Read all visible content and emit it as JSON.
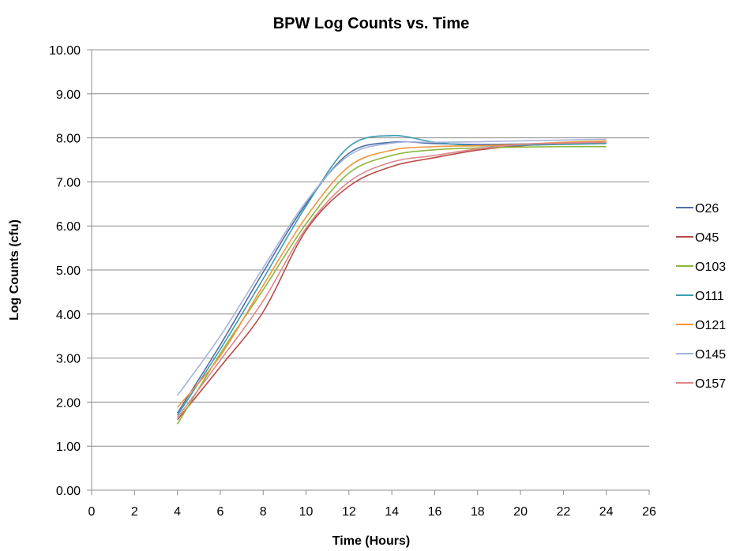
{
  "chart_data": {
    "type": "line",
    "title": "BPW Log Counts vs. Time",
    "xlabel": "Time (Hours)",
    "ylabel": "Log Counts  (cfu)",
    "xlim": [
      0,
      26
    ],
    "ylim": [
      0,
      10
    ],
    "xticks": [
      0,
      2,
      4,
      6,
      8,
      10,
      12,
      14,
      16,
      18,
      20,
      22,
      24,
      26
    ],
    "yticks": [
      0,
      1,
      2,
      3,
      4,
      5,
      6,
      7,
      8,
      9,
      10
    ],
    "xtick_labels": [
      "0",
      "2",
      "4",
      "6",
      "8",
      "10",
      "12",
      "14",
      "16",
      "18",
      "20",
      "22",
      "24",
      "26"
    ],
    "ytick_labels": [
      "0.00",
      "1.00",
      "2.00",
      "3.00",
      "4.00",
      "5.00",
      "6.00",
      "7.00",
      "8.00",
      "9.00",
      "10.00"
    ],
    "grid": "horizontal",
    "legend": "right",
    "x": [
      4,
      6,
      8,
      10,
      12,
      14,
      16,
      18,
      20,
      22,
      24
    ],
    "series": [
      {
        "name": "O26",
        "color": "#4f6fa6",
        "values": [
          1.75,
          3.3,
          4.95,
          6.5,
          7.65,
          7.9,
          7.87,
          7.85,
          7.86,
          7.88,
          7.9
        ]
      },
      {
        "name": "O45",
        "color": "#b94a48",
        "values": [
          1.6,
          2.8,
          4.05,
          5.9,
          6.9,
          7.35,
          7.55,
          7.72,
          7.82,
          7.86,
          7.88
        ]
      },
      {
        "name": "O103",
        "color": "#8db63c",
        "values": [
          1.5,
          3.1,
          4.55,
          6.05,
          7.2,
          7.6,
          7.73,
          7.77,
          7.79,
          7.8,
          7.8
        ]
      },
      {
        "name": "O111",
        "color": "#3c9cb0",
        "values": [
          1.7,
          3.2,
          4.8,
          6.45,
          7.8,
          8.05,
          7.9,
          7.82,
          7.83,
          7.85,
          7.87
        ]
      },
      {
        "name": "O121",
        "color": "#f2963b",
        "values": [
          1.88,
          3.05,
          4.65,
          6.2,
          7.35,
          7.72,
          7.8,
          7.82,
          7.85,
          7.9,
          7.93
        ]
      },
      {
        "name": "O145",
        "color": "#a5b4dc",
        "values": [
          2.15,
          3.5,
          5.05,
          6.55,
          7.6,
          7.88,
          7.9,
          7.91,
          7.93,
          7.95,
          7.97
        ]
      },
      {
        "name": "O157",
        "color": "#e0888a",
        "values": [
          1.65,
          2.95,
          4.3,
          5.95,
          7.0,
          7.45,
          7.6,
          7.75,
          7.85,
          7.88,
          7.9
        ]
      }
    ]
  }
}
